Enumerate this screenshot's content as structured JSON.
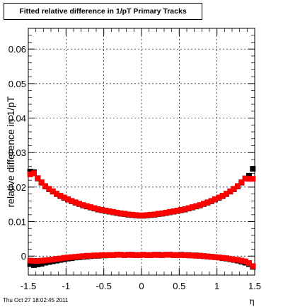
{
  "title": "Fitted relative difference in 1/pT  Primary Tracks",
  "timestamp": "Thu Oct 27 18:02:45 2011",
  "chart_data": {
    "type": "scatter",
    "xlabel": "η",
    "ylabel": "relative difference in 1/pT",
    "xlim": [
      -1.5,
      1.5
    ],
    "ylim": [
      -0.0055,
      0.066
    ],
    "xticks": [
      -1.5,
      -1,
      -0.5,
      0,
      0.5,
      1,
      1.5
    ],
    "xtick_labels": [
      "-1.5",
      "-1",
      "-0.5",
      "0",
      "0.5",
      "1",
      "1.5"
    ],
    "yticks": [
      0,
      0.01,
      0.02,
      0.03,
      0.04,
      0.05,
      0.06
    ],
    "ytick_labels": [
      "0",
      "0.01",
      "0.02",
      "0.03",
      "0.04",
      "0.05",
      "0.06"
    ],
    "grid": true,
    "marker": "square",
    "colors": {
      "black": "#000000",
      "red": "#ff0000"
    },
    "x": [
      -1.475,
      -1.425,
      -1.375,
      -1.325,
      -1.275,
      -1.225,
      -1.175,
      -1.125,
      -1.075,
      -1.025,
      -0.975,
      -0.925,
      -0.875,
      -0.825,
      -0.775,
      -0.725,
      -0.675,
      -0.625,
      -0.575,
      -0.525,
      -0.475,
      -0.425,
      -0.375,
      -0.325,
      -0.275,
      -0.225,
      -0.175,
      -0.125,
      -0.075,
      -0.025,
      0.025,
      0.075,
      0.125,
      0.175,
      0.225,
      0.275,
      0.325,
      0.375,
      0.425,
      0.475,
      0.525,
      0.575,
      0.625,
      0.675,
      0.725,
      0.775,
      0.825,
      0.875,
      0.925,
      0.975,
      1.025,
      1.075,
      1.125,
      1.175,
      1.225,
      1.275,
      1.325,
      1.375,
      1.425,
      1.475
    ],
    "series": [
      {
        "color": "black",
        "values": [
          0.0245,
          0.0243,
          0.0225,
          0.0213,
          0.0202,
          0.0194,
          0.0187,
          0.018,
          0.0174,
          0.0169,
          0.0164,
          0.0159,
          0.0155,
          0.0151,
          0.0147,
          0.0144,
          0.0141,
          0.0138,
          0.0135,
          0.0133,
          0.0131,
          0.0129,
          0.0127,
          0.0125,
          0.0123,
          0.0122,
          0.012,
          0.0119,
          0.0118,
          0.0117,
          0.0117,
          0.0118,
          0.0119,
          0.012,
          0.0122,
          0.0123,
          0.0125,
          0.0127,
          0.0129,
          0.0131,
          0.0133,
          0.0135,
          0.0138,
          0.0141,
          0.0144,
          0.0147,
          0.0151,
          0.0155,
          0.0159,
          0.0164,
          0.0169,
          0.0174,
          0.018,
          0.0187,
          0.0194,
          0.0202,
          0.0213,
          0.0225,
          0.0233,
          0.0253
        ]
      },
      {
        "color": "black",
        "values": [
          -0.0023,
          -0.0026,
          -0.0024,
          -0.0022,
          -0.0019,
          -0.0017,
          -0.0015,
          -0.0013,
          -0.0011,
          -0.0009,
          -0.0007,
          -0.0006,
          -0.0004,
          -0.0003,
          -0.0002,
          -0.0001,
          0.0,
          0.0001,
          0.0001,
          0.0002,
          0.0002,
          0.0003,
          0.0003,
          0.0004,
          0.0004,
          0.0003,
          0.0004,
          0.0004,
          0.0003,
          0.0003,
          0.0004,
          0.0003,
          0.0003,
          0.0004,
          0.0004,
          0.0003,
          0.0004,
          0.0004,
          0.0003,
          0.0003,
          0.0004,
          0.0003,
          0.0003,
          0.0002,
          0.0002,
          0.0001,
          0.0,
          -0.0001,
          -0.0002,
          -0.0003,
          -0.0004,
          -0.0006,
          -0.0007,
          -0.0009,
          -0.0011,
          -0.0013,
          -0.0016,
          -0.0019,
          -0.0023,
          -0.0031
        ]
      },
      {
        "color": "red",
        "values": [
          0.0237,
          0.024,
          0.0226,
          0.0214,
          0.0203,
          0.0195,
          0.0188,
          0.0181,
          0.0175,
          0.017,
          0.0165,
          0.016,
          0.0156,
          0.0152,
          0.0148,
          0.0145,
          0.0142,
          0.0139,
          0.0136,
          0.0134,
          0.0132,
          0.013,
          0.0128,
          0.0126,
          0.0124,
          0.0123,
          0.0121,
          0.012,
          0.0119,
          0.0118,
          0.0118,
          0.0119,
          0.012,
          0.0121,
          0.0123,
          0.0124,
          0.0126,
          0.0128,
          0.013,
          0.0132,
          0.0134,
          0.0136,
          0.0139,
          0.0142,
          0.0145,
          0.0148,
          0.0152,
          0.0156,
          0.016,
          0.0165,
          0.017,
          0.0175,
          0.0181,
          0.0188,
          0.0195,
          0.0203,
          0.0214,
          0.0225,
          0.0224,
          0.0224
        ]
      },
      {
        "color": "red",
        "values": [
          -0.0013,
          -0.0014,
          -0.0014,
          -0.0013,
          -0.0012,
          -0.0011,
          -0.001,
          -0.0008,
          -0.0007,
          -0.0005,
          -0.0004,
          -0.0003,
          -0.0002,
          -0.0001,
          0.0,
          0.0001,
          0.0001,
          0.0002,
          0.0002,
          0.0003,
          0.0003,
          0.0003,
          0.0003,
          0.0004,
          0.0004,
          0.0003,
          0.0004,
          0.0003,
          0.0003,
          0.0003,
          0.0004,
          0.0003,
          0.0003,
          0.0004,
          0.0003,
          0.0003,
          0.0004,
          0.0004,
          0.0003,
          0.0003,
          0.0003,
          0.0003,
          0.0002,
          0.0002,
          0.0001,
          0.0001,
          0.0,
          -0.0001,
          -0.0002,
          -0.0003,
          -0.0004,
          -0.0005,
          -0.0006,
          -0.0008,
          -0.001,
          -0.0011,
          -0.0013,
          -0.0015,
          -0.002,
          -0.0029
        ]
      }
    ]
  }
}
